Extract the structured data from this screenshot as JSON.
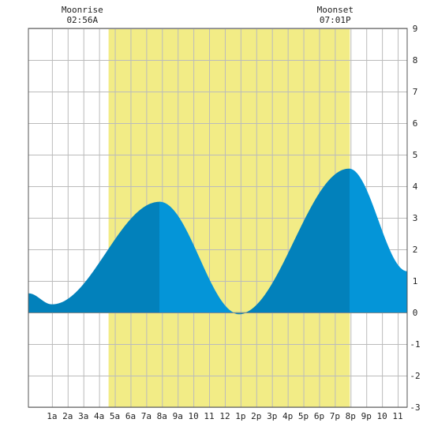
{
  "chart_data": {
    "type": "area",
    "x_unit": "hour of day",
    "xlim": [
      -0.5,
      23.6
    ],
    "ylim": [
      -3,
      9
    ],
    "y_ticks": [
      -3,
      -2,
      -1,
      0,
      1,
      2,
      3,
      4,
      5,
      6,
      7,
      8,
      9
    ],
    "y_axis_side": "right",
    "grid": true,
    "x_tick_labels": [
      {
        "x": 1,
        "label": "1a"
      },
      {
        "x": 2,
        "label": "2a"
      },
      {
        "x": 3,
        "label": "3a"
      },
      {
        "x": 4,
        "label": "4a"
      },
      {
        "x": 5,
        "label": "5a"
      },
      {
        "x": 6,
        "label": "6a"
      },
      {
        "x": 7,
        "label": "7a"
      },
      {
        "x": 8,
        "label": "8a"
      },
      {
        "x": 9,
        "label": "9a"
      },
      {
        "x": 10,
        "label": "10"
      },
      {
        "x": 11,
        "label": "11"
      },
      {
        "x": 12,
        "label": "12"
      },
      {
        "x": 13,
        "label": "1p"
      },
      {
        "x": 14,
        "label": "2p"
      },
      {
        "x": 15,
        "label": "3p"
      },
      {
        "x": 16,
        "label": "4p"
      },
      {
        "x": 17,
        "label": "5p"
      },
      {
        "x": 18,
        "label": "6p"
      },
      {
        "x": 19,
        "label": "7p"
      },
      {
        "x": 20,
        "label": "8p"
      },
      {
        "x": 21,
        "label": "9p"
      },
      {
        "x": 22,
        "label": "10"
      },
      {
        "x": 23,
        "label": "11"
      }
    ],
    "daylight": {
      "start": 4.6,
      "end": 19.95
    },
    "tide_extremes": [
      {
        "x": -0.5,
        "y": 0.6
      },
      {
        "x": 1.0,
        "y": 0.25
      },
      {
        "x": 7.85,
        "y": 3.5
      },
      {
        "x": 12.9,
        "y": -0.05
      },
      {
        "x": 19.9,
        "y": 4.55
      },
      {
        "x": 23.6,
        "y": 1.3
      }
    ],
    "shade_bands": [
      {
        "from": -0.5,
        "to": 0.85,
        "tone": "dark"
      },
      {
        "from": 0.85,
        "to": 7.85,
        "tone": "dark"
      },
      {
        "from": 7.85,
        "to": 12.75,
        "tone": "light"
      },
      {
        "from": 12.75,
        "to": 19.95,
        "tone": "dark"
      },
      {
        "from": 19.95,
        "to": 23.6,
        "tone": "light"
      }
    ],
    "annotations": [
      {
        "title": "Moonrise",
        "time": "02:56A",
        "x": 2.93
      },
      {
        "title": "Moonset",
        "time": "07:01P",
        "x": 19.02
      }
    ],
    "colors": {
      "daylight": "#f2ec86",
      "grid": "#bbbbbb",
      "tide_dark": "#0281bb",
      "tide_light": "#0495d8",
      "axis_text": "#222222"
    }
  }
}
